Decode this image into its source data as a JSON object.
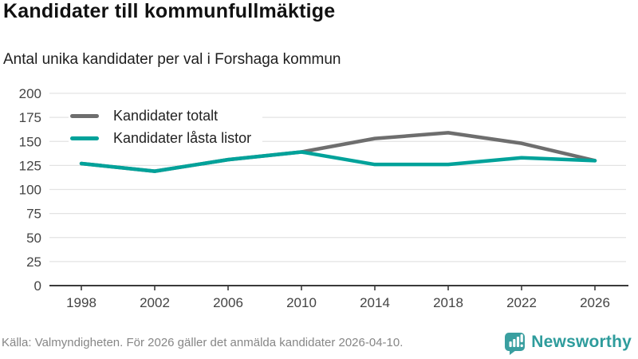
{
  "title": "Kandidater till kommunfullmäktige",
  "subtitle": "Antal unika kandidater per val i Forshaga kommun",
  "legend": {
    "items": [
      {
        "label": "Kandidater totalt"
      },
      {
        "label": "Kandidater låsta listor"
      }
    ]
  },
  "footer": {
    "source": "Källa: Valmyndigheten. För 2026 gäller det anmälda kandidater 2026-04-10."
  },
  "logo": {
    "text": "Newsworthy",
    "icon": "bar-chart-speech-bubble-icon",
    "color": "#2e9c9c",
    "icon_color": "#3a9fa0"
  },
  "colors": {
    "series_total": "#6e6e6e",
    "series_locked": "#00a29a",
    "gridline": "#e3e3e3",
    "axis": "#3a3a3a",
    "tick_text": "#444444"
  },
  "chart_data": {
    "type": "line",
    "title": "Kandidater till kommunfullmäktige",
    "subtitle": "Antal unika kandidater per val i Forshaga kommun",
    "categories": [
      1998,
      2002,
      2006,
      2010,
      2014,
      2018,
      2022,
      2026
    ],
    "series": [
      {
        "name": "Kandidater totalt",
        "color": "#6e6e6e",
        "values": [
          127,
          119,
          131,
          139,
          153,
          159,
          148,
          130
        ]
      },
      {
        "name": "Kandidater låsta listor",
        "color": "#00a29a",
        "values": [
          127,
          119,
          131,
          139,
          126,
          126,
          133,
          130
        ]
      }
    ],
    "xlabel": "",
    "ylabel": "",
    "ylim": [
      0,
      200
    ],
    "ytick_step": 25,
    "grid": true,
    "legend_position": "top-left"
  }
}
